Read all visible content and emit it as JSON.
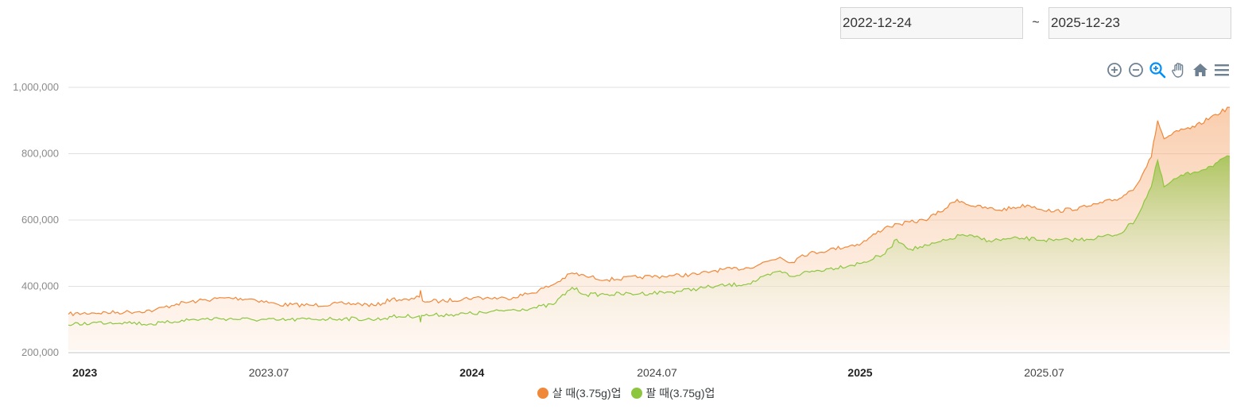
{
  "date_range": {
    "start": "2022-12-24",
    "separator": "~",
    "end": "2025-12-23"
  },
  "toolbar": {
    "icons": [
      "zoom-in-icon",
      "zoom-out-icon",
      "selection-zoom-icon",
      "pan-icon",
      "reset-home-icon",
      "menu-icon"
    ],
    "active_color": "#008ffb",
    "inactive_color": "#6e8192"
  },
  "colors": {
    "buy": "#f0883a",
    "sell": "#8cc63f",
    "grid": "#e0e0e0",
    "tick_label": "#8a8a8a"
  },
  "chart_data": {
    "type": "area",
    "x_start": "2022-12-24",
    "x_end": "2025-12-23",
    "ylim": [
      200000,
      1000000
    ],
    "y_ticks": [
      200000,
      400000,
      600000,
      800000,
      1000000
    ],
    "y_tick_labels": [
      "200,000",
      "400,000",
      "600,000",
      "800,000",
      "1,000,000"
    ],
    "x_ticks": [
      {
        "date": "2023-01-01",
        "label": "2023",
        "bold": true
      },
      {
        "date": "2023-07-01",
        "label": "2023.07",
        "bold": false
      },
      {
        "date": "2024-01-01",
        "label": "2024",
        "bold": true
      },
      {
        "date": "2024-07-01",
        "label": "2024.07",
        "bold": false
      },
      {
        "date": "2025-01-01",
        "label": "2025",
        "bold": true
      },
      {
        "date": "2025-07-01",
        "label": "2025.07",
        "bold": false
      }
    ],
    "grid": true,
    "legend_position": "bottom",
    "series": [
      {
        "name": "살 때(3.75g)업",
        "color": "#f0883a",
        "points": [
          [
            "2022-12-24",
            316000
          ],
          [
            "2023-01-15",
            320000
          ],
          [
            "2023-02-15",
            322000
          ],
          [
            "2023-03-15",
            328000
          ],
          [
            "2023-04-05",
            347000
          ],
          [
            "2023-04-25",
            356000
          ],
          [
            "2023-05-20",
            365000
          ],
          [
            "2023-06-15",
            362000
          ],
          [
            "2023-07-10",
            345000
          ],
          [
            "2023-08-10",
            343000
          ],
          [
            "2023-09-10",
            348000
          ],
          [
            "2023-09-25",
            347000
          ],
          [
            "2023-10-10",
            342000
          ],
          [
            "2023-10-25",
            362000
          ],
          [
            "2023-11-10",
            358000
          ],
          [
            "2023-11-20",
            368000
          ],
          [
            "2023-11-21",
            388000
          ],
          [
            "2023-11-23",
            356000
          ],
          [
            "2023-12-10",
            355000
          ],
          [
            "2024-01-10",
            366000
          ],
          [
            "2024-02-10",
            364000
          ],
          [
            "2024-03-05",
            380000
          ],
          [
            "2024-03-25",
            405000
          ],
          [
            "2024-04-12",
            440000
          ],
          [
            "2024-04-25",
            430000
          ],
          [
            "2024-05-15",
            420000
          ],
          [
            "2024-06-15",
            428000
          ],
          [
            "2024-07-15",
            432000
          ],
          [
            "2024-08-10",
            437000
          ],
          [
            "2024-08-25",
            448000
          ],
          [
            "2024-09-25",
            456000
          ],
          [
            "2024-10-25",
            488000
          ],
          [
            "2024-11-05",
            472000
          ],
          [
            "2024-11-15",
            495000
          ],
          [
            "2024-12-10",
            510000
          ],
          [
            "2025-01-10",
            530000
          ],
          [
            "2025-02-01",
            578000
          ],
          [
            "2025-02-15",
            588000
          ],
          [
            "2025-03-10",
            600000
          ],
          [
            "2025-03-25",
            624000
          ],
          [
            "2025-04-10",
            662000
          ],
          [
            "2025-04-25",
            642000
          ],
          [
            "2025-05-20",
            630000
          ],
          [
            "2025-06-15",
            645000
          ],
          [
            "2025-07-10",
            625000
          ],
          [
            "2025-08-10",
            640000
          ],
          [
            "2025-08-25",
            652000
          ],
          [
            "2025-09-10",
            665000
          ],
          [
            "2025-09-25",
            700000
          ],
          [
            "2025-10-10",
            790000
          ],
          [
            "2025-10-16",
            900000
          ],
          [
            "2025-10-22",
            845000
          ],
          [
            "2025-11-05",
            868000
          ],
          [
            "2025-11-20",
            880000
          ],
          [
            "2025-12-05",
            910000
          ],
          [
            "2025-12-23",
            940000
          ]
        ]
      },
      {
        "name": "팔 때(3.75g)업",
        "color": "#8cc63f",
        "points": [
          [
            "2022-12-24",
            283000
          ],
          [
            "2023-01-15",
            290000
          ],
          [
            "2023-02-15",
            292000
          ],
          [
            "2023-03-10",
            286000
          ],
          [
            "2023-03-25",
            290000
          ],
          [
            "2023-04-10",
            298000
          ],
          [
            "2023-05-15",
            303000
          ],
          [
            "2023-06-15",
            300000
          ],
          [
            "2023-07-10",
            298000
          ],
          [
            "2023-08-10",
            301000
          ],
          [
            "2023-09-10",
            303000
          ],
          [
            "2023-10-10",
            300000
          ],
          [
            "2023-10-25",
            308000
          ],
          [
            "2023-11-20",
            311000
          ],
          [
            "2023-11-21",
            292000
          ],
          [
            "2023-11-22",
            312000
          ],
          [
            "2023-12-20",
            315000
          ],
          [
            "2024-01-20",
            320000
          ],
          [
            "2024-02-10",
            328000
          ],
          [
            "2024-03-05",
            334000
          ],
          [
            "2024-03-25",
            345000
          ],
          [
            "2024-04-12",
            397000
          ],
          [
            "2024-04-25",
            375000
          ],
          [
            "2024-05-15",
            376000
          ],
          [
            "2024-06-15",
            378000
          ],
          [
            "2024-07-15",
            383000
          ],
          [
            "2024-08-25",
            400000
          ],
          [
            "2024-09-25",
            408000
          ],
          [
            "2024-10-25",
            446000
          ],
          [
            "2024-11-05",
            430000
          ],
          [
            "2024-11-15",
            440000
          ],
          [
            "2024-12-10",
            453000
          ],
          [
            "2025-01-10",
            470000
          ],
          [
            "2025-02-01",
            498000
          ],
          [
            "2025-02-12",
            542000
          ],
          [
            "2025-02-25",
            512000
          ],
          [
            "2025-03-15",
            524000
          ],
          [
            "2025-04-01",
            540000
          ],
          [
            "2025-04-15",
            556000
          ],
          [
            "2025-05-10",
            538000
          ],
          [
            "2025-06-10",
            545000
          ],
          [
            "2025-07-10",
            538000
          ],
          [
            "2025-08-10",
            542000
          ],
          [
            "2025-09-10",
            558000
          ],
          [
            "2025-09-25",
            600000
          ],
          [
            "2025-10-10",
            700000
          ],
          [
            "2025-10-16",
            780000
          ],
          [
            "2025-10-22",
            700000
          ],
          [
            "2025-11-05",
            730000
          ],
          [
            "2025-11-20",
            745000
          ],
          [
            "2025-12-05",
            762000
          ],
          [
            "2025-12-23",
            792000
          ]
        ]
      }
    ]
  }
}
